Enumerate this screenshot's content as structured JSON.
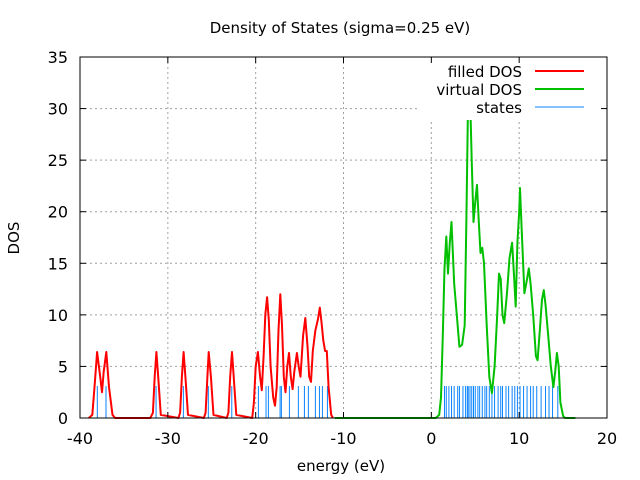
{
  "chart_data": {
    "type": "line",
    "title": "Density of States (sigma=0.25 eV)",
    "xlabel": "energy (eV)",
    "ylabel": "DOS",
    "xlim": [
      -40,
      20
    ],
    "ylim": [
      0,
      35
    ],
    "xticks": [
      -40,
      -30,
      -20,
      -10,
      0,
      10,
      20
    ],
    "yticks": [
      0,
      5,
      10,
      15,
      20,
      25,
      30,
      35
    ],
    "grid": true,
    "legend_position": "top-right",
    "colors": {
      "filled": "#ff0000",
      "virtual": "#00c000",
      "states": "#0a84ff"
    },
    "series": [
      {
        "name": "filled DOS",
        "points": [
          [
            -39,
            0
          ],
          [
            -38.6,
            0.3
          ],
          [
            -38.3,
            3.5
          ],
          [
            -38.05,
            6.4
          ],
          [
            -37.7,
            4
          ],
          [
            -37.5,
            2.5
          ],
          [
            -37.3,
            4.5
          ],
          [
            -37.0,
            6.4
          ],
          [
            -36.7,
            3
          ],
          [
            -36.3,
            0.3
          ],
          [
            -36,
            0
          ],
          [
            -32,
            0
          ],
          [
            -31.7,
            0.5
          ],
          [
            -31.5,
            4
          ],
          [
            -31.3,
            6.4
          ],
          [
            -31.1,
            4
          ],
          [
            -30.8,
            0.3
          ],
          [
            -28.8,
            0
          ],
          [
            -28.6,
            0.5
          ],
          [
            -28.4,
            4
          ],
          [
            -28.2,
            6.4
          ],
          [
            -28.0,
            4
          ],
          [
            -27.7,
            0.3
          ],
          [
            -25.9,
            0
          ],
          [
            -25.7,
            0.5
          ],
          [
            -25.5,
            4
          ],
          [
            -25.35,
            6.4
          ],
          [
            -25.1,
            4
          ],
          [
            -24.8,
            0.3
          ],
          [
            -23.3,
            0
          ],
          [
            -23.1,
            0.5
          ],
          [
            -22.9,
            4
          ],
          [
            -22.7,
            6.4
          ],
          [
            -22.5,
            4
          ],
          [
            -22.2,
            0.3
          ],
          [
            -20.4,
            0
          ],
          [
            -20.2,
            1.5
          ],
          [
            -20.0,
            5
          ],
          [
            -19.75,
            6.4
          ],
          [
            -19.5,
            4
          ],
          [
            -19.3,
            2.7
          ],
          [
            -19.1,
            6
          ],
          [
            -18.9,
            10
          ],
          [
            -18.7,
            11.7
          ],
          [
            -18.5,
            9.5
          ],
          [
            -18.3,
            5
          ],
          [
            -18.0,
            2
          ],
          [
            -17.8,
            1.2
          ],
          [
            -17.6,
            3
          ],
          [
            -17.4,
            8.5
          ],
          [
            -17.2,
            12
          ],
          [
            -17.0,
            9
          ],
          [
            -16.8,
            4
          ],
          [
            -16.6,
            2.5
          ],
          [
            -16.4,
            5
          ],
          [
            -16.2,
            6.3
          ],
          [
            -16.0,
            4
          ],
          [
            -15.8,
            2.8
          ],
          [
            -15.6,
            4.5
          ],
          [
            -15.3,
            6.3
          ],
          [
            -15.1,
            5
          ],
          [
            -14.9,
            4
          ],
          [
            -14.6,
            8
          ],
          [
            -14.35,
            9.7
          ],
          [
            -14.1,
            7
          ],
          [
            -13.9,
            4
          ],
          [
            -13.7,
            3.5
          ],
          [
            -13.5,
            6.5
          ],
          [
            -13.2,
            8.5
          ],
          [
            -12.9,
            9.6
          ],
          [
            -12.7,
            10.7
          ],
          [
            -12.5,
            9.3
          ],
          [
            -12.3,
            7.5
          ],
          [
            -12.1,
            6.5
          ],
          [
            -11.9,
            6.5
          ],
          [
            -11.7,
            3
          ],
          [
            -11.4,
            0.3
          ],
          [
            -11.2,
            0
          ]
        ]
      },
      {
        "name": "virtual DOS",
        "points": [
          [
            -11,
            0
          ],
          [
            0.5,
            0
          ],
          [
            0.9,
            0.3
          ],
          [
            1.1,
            2
          ],
          [
            1.3,
            8
          ],
          [
            1.5,
            14.5
          ],
          [
            1.7,
            17.6
          ],
          [
            1.9,
            14
          ],
          [
            2.1,
            17
          ],
          [
            2.3,
            19.0
          ],
          [
            2.6,
            13
          ],
          [
            2.9,
            10
          ],
          [
            3.2,
            6.9
          ],
          [
            3.5,
            7.1
          ],
          [
            3.8,
            9
          ],
          [
            4.0,
            20
          ],
          [
            4.15,
            29
          ],
          [
            4.3,
            32.3
          ],
          [
            4.45,
            30
          ],
          [
            4.6,
            25
          ],
          [
            4.8,
            19
          ],
          [
            5.0,
            21
          ],
          [
            5.2,
            22.6
          ],
          [
            5.4,
            19
          ],
          [
            5.6,
            16
          ],
          [
            5.8,
            16.5
          ],
          [
            6.0,
            15
          ],
          [
            6.3,
            9
          ],
          [
            6.6,
            4
          ],
          [
            6.9,
            2.4
          ],
          [
            7.2,
            5
          ],
          [
            7.5,
            10
          ],
          [
            7.7,
            14
          ],
          [
            7.9,
            13.5
          ],
          [
            8.1,
            10
          ],
          [
            8.3,
            9.2
          ],
          [
            8.6,
            12
          ],
          [
            8.9,
            15.5
          ],
          [
            9.2,
            17
          ],
          [
            9.4,
            14
          ],
          [
            9.6,
            10.8
          ],
          [
            9.8,
            17
          ],
          [
            10.0,
            20
          ],
          [
            10.1,
            22.3
          ],
          [
            10.3,
            18
          ],
          [
            10.6,
            12.1
          ],
          [
            10.9,
            13.5
          ],
          [
            11.1,
            14.5
          ],
          [
            11.3,
            13
          ],
          [
            11.6,
            10
          ],
          [
            11.9,
            6
          ],
          [
            12.1,
            5.6
          ],
          [
            12.4,
            9
          ],
          [
            12.6,
            11.5
          ],
          [
            12.8,
            12.4
          ],
          [
            13.0,
            11
          ],
          [
            13.3,
            8
          ],
          [
            13.6,
            5
          ],
          [
            13.9,
            3
          ],
          [
            14.1,
            4.5
          ],
          [
            14.3,
            6.3
          ],
          [
            14.5,
            5
          ],
          [
            14.7,
            1.5
          ],
          [
            15.0,
            0.2
          ],
          [
            15.2,
            0
          ],
          [
            16.4,
            0
          ]
        ]
      }
    ],
    "states": {
      "name": "states",
      "height": 3.1,
      "energies": [
        -38.03,
        -37.04,
        -31.34,
        -28.23,
        -25.39,
        -22.72,
        -19.69,
        -18.82,
        -18.55,
        -17.22,
        -17.07,
        -16.16,
        -15.14,
        -14.45,
        -14.0,
        -13.2,
        -12.74,
        -12.4,
        -11.83,
        1.5,
        1.7,
        2.0,
        2.3,
        2.6,
        3.0,
        3.2,
        3.6,
        3.9,
        4.1,
        4.2,
        4.4,
        4.6,
        4.8,
        5.0,
        5.3,
        5.5,
        5.8,
        6.1,
        6.3,
        6.6,
        6.9,
        7.2,
        7.6,
        7.9,
        8.1,
        8.5,
        8.8,
        9.2,
        9.5,
        9.8,
        10.1,
        10.5,
        10.9,
        11.3,
        11.6,
        12.0,
        12.5,
        13.0,
        13.4,
        13.8,
        14.4
      ]
    }
  }
}
